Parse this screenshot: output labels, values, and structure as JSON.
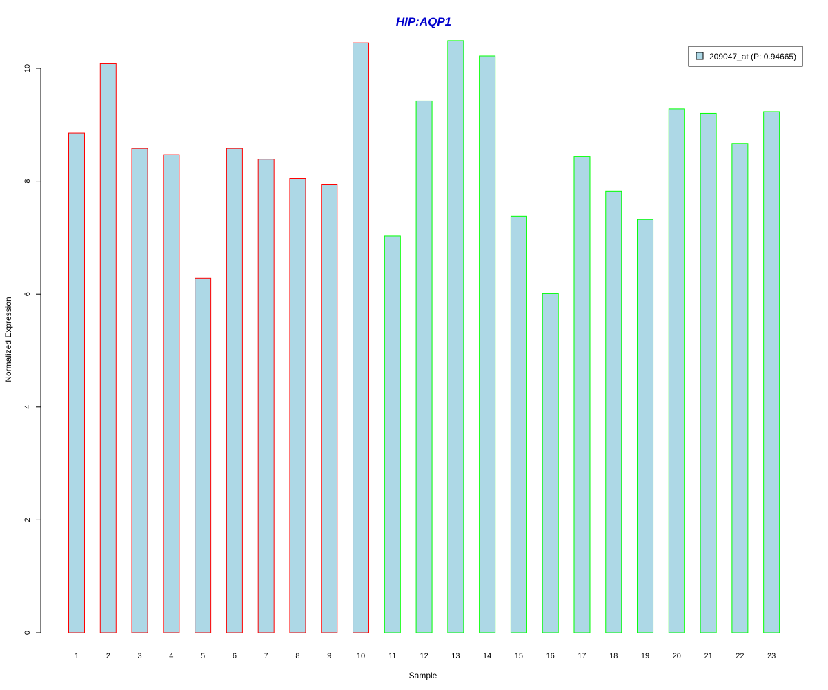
{
  "colors": {
    "background": "#ffffff",
    "bar_fill": "#add8e6",
    "group1_border": "#ff0000",
    "group2_border": "#00ff00",
    "title": "#0000cc",
    "axis": "#000000"
  },
  "chart_data": {
    "type": "bar",
    "title": "HIP:AQP1",
    "xlabel": "Sample",
    "ylabel": "Normalized Expression",
    "ylim": [
      0,
      10.5
    ],
    "yticks": [
      "0",
      "2",
      "4",
      "6",
      "8",
      "10"
    ],
    "ytick_values": [
      0,
      2,
      4,
      6,
      8,
      10
    ],
    "grid": false,
    "legend_position": "top-right",
    "categories": [
      "1",
      "2",
      "3",
      "4",
      "5",
      "6",
      "7",
      "8",
      "9",
      "10",
      "11",
      "12",
      "13",
      "14",
      "15",
      "16",
      "17",
      "18",
      "19",
      "20",
      "21",
      "22",
      "23"
    ],
    "series": [
      {
        "name": "209047_at (P: 0.94665)",
        "values": [
          8.85,
          10.08,
          8.58,
          8.47,
          6.28,
          8.58,
          8.39,
          8.05,
          7.94,
          10.45,
          7.03,
          9.42,
          10.49,
          10.22,
          7.38,
          6.01,
          8.44,
          7.82,
          7.32,
          9.28,
          9.2,
          8.67,
          9.23
        ]
      }
    ],
    "bar_groups": [
      "group1",
      "group1",
      "group1",
      "group1",
      "group1",
      "group1",
      "group1",
      "group1",
      "group1",
      "group1",
      "group2",
      "group2",
      "group2",
      "group2",
      "group2",
      "group2",
      "group2",
      "group2",
      "group2",
      "group2",
      "group2",
      "group2",
      "group2"
    ]
  }
}
